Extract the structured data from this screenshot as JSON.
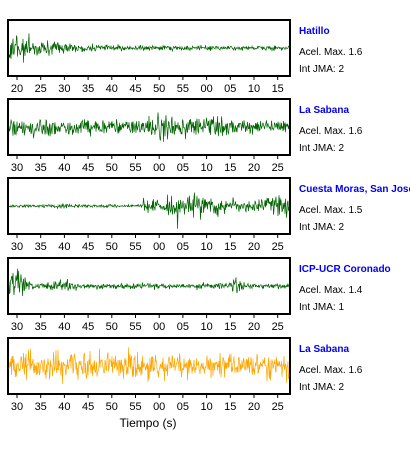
{
  "chart_data": [
    {
      "type": "line",
      "station": "Hatillo",
      "accel_label": "Acel. Max. 1.6",
      "int_label": "Int JMA: 2",
      "ticks": [
        "20",
        "25",
        "30",
        "35",
        "40",
        "45",
        "50",
        "55",
        "00",
        "05",
        "10",
        "15"
      ],
      "color": "#006400",
      "amplitude": 0.9,
      "envelope": "decay"
    },
    {
      "type": "line",
      "station": "La Sabana",
      "accel_label": "Acel. Max. 1.6",
      "int_label": "Int JMA: 2",
      "ticks": [
        "30",
        "35",
        "40",
        "45",
        "50",
        "55",
        "00",
        "05",
        "10",
        "15",
        "20",
        "25"
      ],
      "color": "#006400",
      "amplitude": 0.85,
      "envelope": "sustained"
    },
    {
      "type": "line",
      "station": "Cuesta Moras, San Jose",
      "accel_label": "Acel. Max. 1.5",
      "int_label": "Int JMA: 2",
      "ticks": [
        "30",
        "35",
        "40",
        "45",
        "50",
        "55",
        "00",
        "05",
        "10",
        "15",
        "20",
        "25"
      ],
      "color": "#006400",
      "amplitude": 0.95,
      "envelope": "late"
    },
    {
      "type": "line",
      "station": "ICP-UCR Coronado",
      "accel_label": "Acel. Max. 1.4",
      "int_label": "Int JMA: 1",
      "ticks": [
        "30",
        "35",
        "40",
        "45",
        "50",
        "55",
        "00",
        "05",
        "10",
        "15",
        "20",
        "25"
      ],
      "color": "#006400",
      "amplitude": 0.9,
      "envelope": "early"
    },
    {
      "type": "line",
      "station": "La Sabana",
      "accel_label": "Acel. Max. 1.6",
      "int_label": "Int JMA: 2",
      "ticks": [
        "30",
        "35",
        "40",
        "45",
        "50",
        "55",
        "00",
        "05",
        "10",
        "15",
        "20",
        "25"
      ],
      "color": "#FFA500",
      "amplitude": 0.9,
      "envelope": "full"
    }
  ],
  "xlabel": "Tiempo (s)"
}
